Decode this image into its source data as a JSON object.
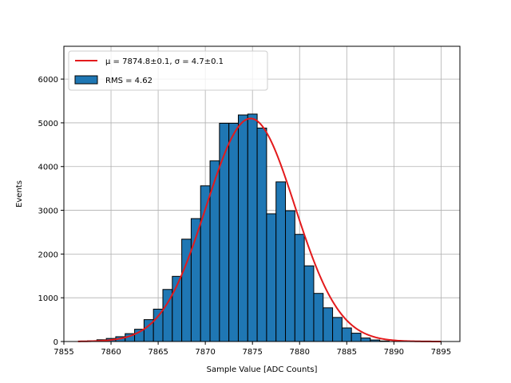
{
  "chart_data": {
    "type": "bar",
    "xlabel": "Sample Value [ADC Counts]",
    "ylabel": "Events",
    "xlim": [
      7855,
      7897
    ],
    "ylim": [
      0,
      6750
    ],
    "xticks": [
      7855,
      7860,
      7865,
      7870,
      7875,
      7880,
      7885,
      7890,
      7895
    ],
    "yticks": [
      0,
      1000,
      2000,
      3000,
      4000,
      5000,
      6000
    ],
    "grid": true,
    "legend_position": "top-left",
    "bin_width": 1,
    "bins": [
      {
        "x": 7858,
        "value": 15
      },
      {
        "x": 7859,
        "value": 40
      },
      {
        "x": 7860,
        "value": 70
      },
      {
        "x": 7861,
        "value": 110
      },
      {
        "x": 7862,
        "value": 180
      },
      {
        "x": 7863,
        "value": 280
      },
      {
        "x": 7864,
        "value": 500
      },
      {
        "x": 7865,
        "value": 740
      },
      {
        "x": 7866,
        "value": 1190
      },
      {
        "x": 7867,
        "value": 1490
      },
      {
        "x": 7868,
        "value": 2340
      },
      {
        "x": 7869,
        "value": 2810
      },
      {
        "x": 7870,
        "value": 3560
      },
      {
        "x": 7871,
        "value": 4130
      },
      {
        "x": 7872,
        "value": 4990
      },
      {
        "x": 7873,
        "value": 4990
      },
      {
        "x": 7874,
        "value": 5180
      },
      {
        "x": 7875,
        "value": 5200
      },
      {
        "x": 7876,
        "value": 4880
      },
      {
        "x": 7877,
        "value": 2920
      },
      {
        "x": 7878,
        "value": 3650
      },
      {
        "x": 7879,
        "value": 2990
      },
      {
        "x": 7880,
        "value": 2450
      },
      {
        "x": 7881,
        "value": 1730
      },
      {
        "x": 7882,
        "value": 1100
      },
      {
        "x": 7883,
        "value": 770
      },
      {
        "x": 7884,
        "value": 550
      },
      {
        "x": 7885,
        "value": 310
      },
      {
        "x": 7886,
        "value": 190
      },
      {
        "x": 7887,
        "value": 80
      },
      {
        "x": 7888,
        "value": 35
      },
      {
        "x": 7889,
        "value": 12
      }
    ],
    "fit": {
      "name": "μ = 7874.8±0.1, σ = 4.7±0.1",
      "mu": 7874.8,
      "sigma": 4.7,
      "amplitude": 5100,
      "x_range": [
        7856.5,
        7895
      ],
      "color": "#e31a1c"
    },
    "histogram": {
      "name": "RMS = 4.62",
      "color": "#1f77b4",
      "edge_color": "#000000"
    }
  }
}
